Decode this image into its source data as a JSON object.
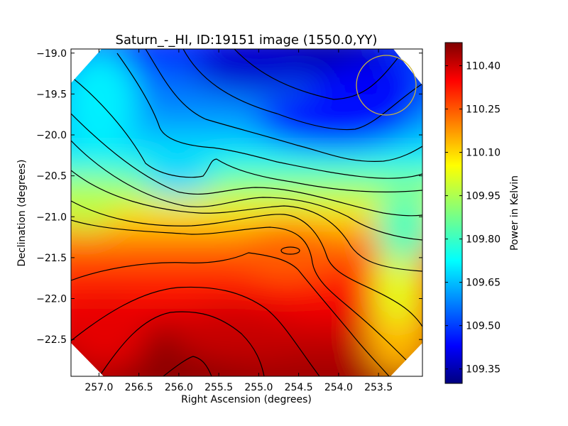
{
  "chart_data": {
    "type": "heatmap",
    "title": "Saturn_-_HI, ID:19151 image (1550.0,YY)",
    "xlabel": "Right Ascension (degrees)",
    "ylabel": "Declination (degrees)",
    "xlim": [
      257.35,
      252.95
    ],
    "ylim": [
      -22.95,
      -18.95
    ],
    "x_ticks": [
      257.0,
      256.5,
      256.0,
      255.5,
      255.0,
      254.5,
      254.0,
      253.5
    ],
    "x_tick_labels": [
      "257.0",
      "256.5",
      "256.0",
      "255.5",
      "255.0",
      "254.5",
      "254.0",
      "253.5"
    ],
    "y_ticks": [
      -19.0,
      -19.5,
      -20.0,
      -20.5,
      -21.0,
      -21.5,
      -22.0,
      -22.5
    ],
    "y_tick_labels": [
      "−19.0",
      "−19.5",
      "−20.0",
      "−20.5",
      "−21.0",
      "−21.5",
      "−22.0",
      "−22.5"
    ],
    "colorbar": {
      "label": "Power in Kelvin",
      "min": 109.3,
      "max": 110.48,
      "ticks": [
        109.35,
        109.5,
        109.65,
        109.8,
        109.95,
        110.1,
        110.25,
        110.4
      ],
      "tick_labels": [
        "109.35",
        "109.50",
        "109.65",
        "109.80",
        "109.95",
        "110.10",
        "110.25",
        "110.40"
      ],
      "colormap": "jet"
    },
    "features": {
      "minimum": {
        "ra": 254.6,
        "dec": -19.05,
        "value": 109.3
      },
      "maximum": {
        "ra": 255.9,
        "dec": -22.7,
        "value": 110.45
      },
      "circle_marker": {
        "ra": 253.45,
        "dec": -19.42,
        "radius_deg": 0.37,
        "color": "#c8b440"
      },
      "contour_color": "#000000"
    }
  }
}
